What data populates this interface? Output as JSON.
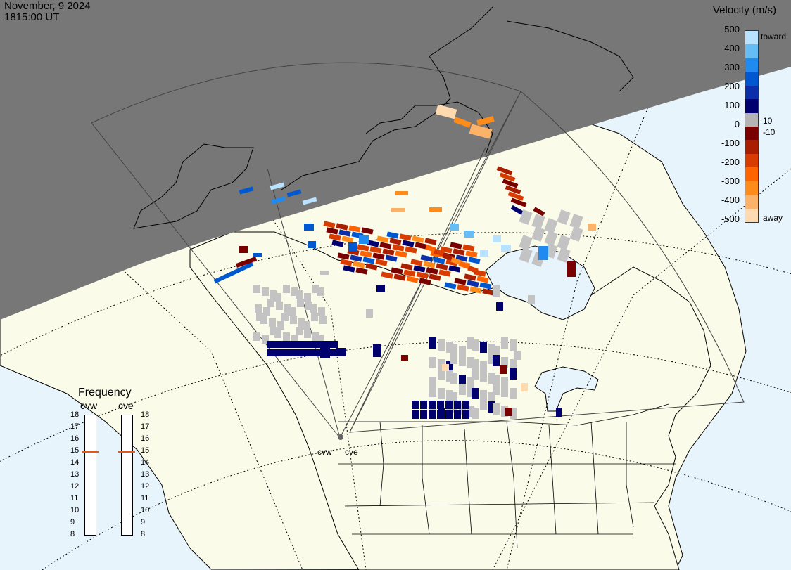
{
  "date": "November, 9 2024",
  "time": "1815:00 UT",
  "velocity": {
    "title": "Velocity (m/s)",
    "ticks": [
      "500",
      "400",
      "300",
      "200",
      "100",
      "0",
      "-100",
      "-200",
      "-300",
      "-400",
      "-500"
    ],
    "inner_pos": "10",
    "inner_neg": "-10",
    "toward_label": "toward",
    "away_label": "away",
    "colors": [
      "#ffd9b0",
      "#fdb26a",
      "#ff8c1a",
      "#ff6400",
      "#d83c00",
      "#aa1e00",
      "#7a0000",
      "#b4b4b4",
      "#00006e",
      "#0a2fa8",
      "#0058d0",
      "#1f8af0",
      "#66bdf5",
      "#b8e2ff"
    ]
  },
  "frequency": {
    "title": "Frequency",
    "stations": [
      "cvw",
      "cve"
    ],
    "scale": [
      "18",
      "17",
      "16",
      "15",
      "14",
      "13",
      "12",
      "11",
      "10",
      "9",
      "8"
    ],
    "selected_mhz": [
      15,
      15
    ]
  },
  "radars": [
    {
      "id": "cvw",
      "label": "cvw"
    },
    {
      "id": "cve",
      "label": "cve"
    }
  ],
  "colors": {
    "ocean": "#e8f4fc",
    "land": "#fbfbe9",
    "night": "#777777",
    "ground_scatter": "#c3c3c3"
  }
}
